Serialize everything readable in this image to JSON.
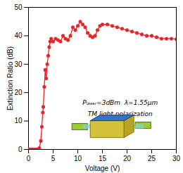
{
  "chart_data": {
    "type": "line",
    "x_label": "Voltage (V)",
    "y_label": "Extinction Ratio (dB)",
    "x": [
      0,
      0.25,
      0.5,
      0.75,
      1,
      1.25,
      1.5,
      1.75,
      2,
      2.2,
      2.5,
      2.7,
      2.9,
      3.0,
      3.2,
      3.4,
      3.6,
      3.8,
      4.0,
      4.2,
      4.4,
      4.6,
      5,
      5.5,
      6,
      6.5,
      7,
      7.5,
      8,
      8.5,
      9,
      9.5,
      10,
      10.5,
      11,
      11.5,
      12,
      12.5,
      13,
      13.5,
      14,
      14.5,
      15,
      16,
      17,
      18,
      19,
      20,
      21,
      22,
      23,
      24,
      25,
      26,
      27,
      28,
      29,
      30
    ],
    "series": [
      {
        "name": "Extinction Ratio",
        "color": "#e8262a",
        "marker": "circle",
        "line_style": "solid",
        "values": [
          0,
          0,
          0,
          0,
          0,
          0,
          0,
          0,
          0,
          0.5,
          3,
          8,
          13,
          15,
          22,
          28,
          25,
          30,
          33,
          36,
          38,
          39,
          38,
          39,
          38.5,
          38,
          40,
          39,
          38.5,
          40,
          43,
          42,
          43.5,
          45,
          44,
          43,
          41,
          40,
          39.5,
          40,
          42,
          43.5,
          44,
          44,
          43.5,
          43,
          42.5,
          42,
          41.5,
          41,
          40.5,
          40,
          40,
          39.5,
          39,
          39,
          39,
          38.8
        ]
      }
    ],
    "xlim": [
      0,
      30
    ],
    "xticks": [
      0,
      5,
      10,
      15,
      20,
      25,
      30
    ],
    "ylim": [
      0,
      50
    ],
    "yticks": [
      0,
      10,
      20,
      30,
      40,
      50
    ],
    "grid": false,
    "annotations": [
      "Pₗₐₛₑᵣ=3dBm  λ=1.55μm",
      "TM light polarization"
    ]
  }
}
